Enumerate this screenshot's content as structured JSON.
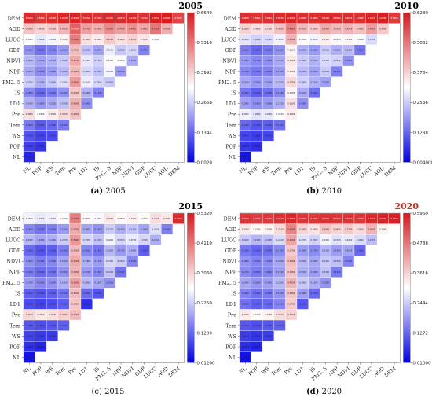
{
  "chart_data": [
    {
      "type": "heatmap",
      "title": "2005",
      "title_color": "#000000",
      "caption_letter": "(a)",
      "caption_year": "2005",
      "caption_letter_bold": true,
      "variables": [
        "NL",
        "POP",
        "WS",
        "Tem",
        "Pre",
        "LD1",
        "IS",
        "PM2.5",
        "NPP",
        "NDVI",
        "GDP",
        "LUCC",
        "AOD",
        "DEM"
      ],
      "x_tick_labels": [
        "NL",
        "POP",
        "WS",
        "Tem",
        "Pre",
        "LD1",
        "IS",
        "PM2. 5",
        "NPP",
        "NDVI",
        "GDP",
        "LUCC",
        "AOD",
        "DEM"
      ],
      "y_tick_labels": [
        "NL",
        "POP",
        "WS",
        "Tem",
        "Pre",
        "LD1",
        "IS",
        "PM2. 5",
        "NPP",
        "NDVI",
        "GDP",
        "LUCC",
        "AOD",
        "DEM"
      ],
      "colorbar_ticks": [
        "0.6640",
        "0.5316",
        "0.3992",
        "0.2668",
        "0.1344",
        "0.0020"
      ],
      "vmin": 0.002,
      "vmax": 0.664,
      "values": [
        [
          0.05
        ],
        [
          0.085,
          0.07
        ],
        [
          0.11,
          0.09,
          0.1
        ],
        [
          0.16,
          0.12,
          0.14,
          0.16
        ],
        [
          0.38,
          0.33,
          0.36,
          0.39,
          0.42
        ],
        [
          0.23,
          0.2,
          0.22,
          0.25,
          0.45,
          0.19
        ],
        [
          0.18,
          0.14,
          0.16,
          0.19,
          0.42,
          0.23,
          0.17
        ],
        [
          0.27,
          0.23,
          0.26,
          0.29,
          0.48,
          0.31,
          0.28,
          0.26
        ],
        [
          0.22,
          0.18,
          0.2,
          0.24,
          0.44,
          0.28,
          0.25,
          0.32,
          0.2
        ],
        [
          0.24,
          0.21,
          0.23,
          0.26,
          0.46,
          0.3,
          0.27,
          0.34,
          0.33,
          0.22
        ],
        [
          0.19,
          0.15,
          0.17,
          0.2,
          0.43,
          0.25,
          0.21,
          0.31,
          0.26,
          0.28,
          0.17
        ],
        [
          0.33,
          0.3,
          0.32,
          0.35,
          0.52,
          0.38,
          0.36,
          0.41,
          0.38,
          0.4,
          0.37,
          0.33
        ],
        [
          0.42,
          0.4,
          0.41,
          0.44,
          0.56,
          0.47,
          0.45,
          0.5,
          0.47,
          0.49,
          0.46,
          0.53,
          0.45
        ],
        [
          0.64,
          0.62,
          0.63,
          0.645,
          0.65,
          0.635,
          0.63,
          0.64,
          0.635,
          0.64,
          0.63,
          0.655,
          0.66,
          0.6
        ]
      ]
    },
    {
      "type": "heatmap",
      "title": "2010",
      "title_color": "#000000",
      "caption_letter": "(b)",
      "caption_year": "2010",
      "caption_letter_bold": true,
      "variables": [
        "NL",
        "POP",
        "WS",
        "Tem",
        "Pre",
        "LD1",
        "IS",
        "PM2.5",
        "NPP",
        "NDVI",
        "GDP",
        "LUCC",
        "AOD",
        "DEM"
      ],
      "x_tick_labels": [
        "NL",
        "POP",
        "WS",
        "Tem",
        "Pre",
        "LD1",
        "IS",
        "PM2. 5",
        "NPP",
        "NDVI",
        "GDP",
        "LUCC",
        "AOD",
        "DEM"
      ],
      "y_tick_labels": [
        "NL",
        "POP",
        "WS",
        "Tem",
        "Pre",
        "LD1",
        "IS",
        "PM2. 5",
        "NPP",
        "NDVI",
        "GDP",
        "LUCC",
        "AOD",
        "DEM"
      ],
      "colorbar_ticks": [
        "0.6280",
        "0.5032",
        "0.3784",
        "0.2536",
        "0.1288",
        "0.004000"
      ],
      "vmin": 0.004,
      "vmax": 0.628,
      "values": [
        [
          0.03
        ],
        [
          0.07,
          0.06
        ],
        [
          0.09,
          0.08,
          0.09
        ],
        [
          0.13,
          0.11,
          0.12,
          0.14
        ],
        [
          0.3,
          0.28,
          0.29,
          0.32,
          0.34
        ],
        [
          0.2,
          0.18,
          0.19,
          0.22,
          0.36,
          0.18
        ],
        [
          0.15,
          0.12,
          0.14,
          0.17,
          0.33,
          0.21,
          0.14
        ],
        [
          0.21,
          0.19,
          0.2,
          0.23,
          0.37,
          0.26,
          0.22,
          0.2
        ],
        [
          0.17,
          0.15,
          0.16,
          0.19,
          0.34,
          0.23,
          0.2,
          0.25,
          0.16
        ],
        [
          0.19,
          0.17,
          0.18,
          0.21,
          0.35,
          0.25,
          0.22,
          0.27,
          0.26,
          0.18
        ],
        [
          0.16,
          0.13,
          0.15,
          0.18,
          0.33,
          0.22,
          0.19,
          0.25,
          0.22,
          0.23,
          0.15
        ],
        [
          0.28,
          0.26,
          0.27,
          0.3,
          0.42,
          0.32,
          0.3,
          0.34,
          0.31,
          0.33,
          0.31,
          0.27
        ],
        [
          0.38,
          0.36,
          0.37,
          0.4,
          0.48,
          0.41,
          0.39,
          0.43,
          0.41,
          0.42,
          0.4,
          0.45,
          0.39
        ],
        [
          0.6,
          0.59,
          0.595,
          0.605,
          0.615,
          0.6,
          0.598,
          0.605,
          0.6,
          0.603,
          0.598,
          0.612,
          0.62,
          0.58
        ]
      ]
    },
    {
      "type": "heatmap",
      "title": "2015",
      "title_color": "#000000",
      "caption_letter": "(c)",
      "caption_year": "2015",
      "caption_letter_bold": false,
      "variables": [
        "NL",
        "POP",
        "WS",
        "Tem",
        "Pre",
        "LD1",
        "IS",
        "PM2.5",
        "NPP",
        "NDVI",
        "GDP",
        "LUCC",
        "AOD",
        "DEM"
      ],
      "x_tick_labels": [
        "NL",
        "POP",
        "WS",
        "Tem",
        "Pre",
        "LD1",
        "IS",
        "PM2. 5",
        "NPP",
        "NDVI",
        "GDP",
        "LUCC",
        "AOD",
        "DEM"
      ],
      "y_tick_labels": [
        "NL",
        "POP",
        "WS",
        "Tem",
        "Pre",
        "LD1",
        "IS",
        "PM2. 5",
        "NPP",
        "NDVI",
        "GDP",
        "LUCC",
        "AOD",
        "DEM"
      ],
      "colorbar_ticks": [
        "0.5320",
        "0.4110",
        "0.3060",
        "0.2250",
        "0.1200",
        "0.01200"
      ],
      "vmin": 0.012,
      "vmax": 0.532,
      "values": [
        [
          0.03
        ],
        [
          0.06,
          0.05
        ],
        [
          0.08,
          0.07,
          0.07
        ],
        [
          0.1,
          0.09,
          0.1,
          0.11
        ],
        [
          0.32,
          0.3,
          0.31,
          0.33,
          0.35
        ],
        [
          0.09,
          0.08,
          0.09,
          0.11,
          0.34,
          0.06
        ],
        [
          0.11,
          0.1,
          0.11,
          0.13,
          0.35,
          0.12,
          0.1
        ],
        [
          0.17,
          0.15,
          0.16,
          0.19,
          0.38,
          0.2,
          0.18,
          0.16
        ],
        [
          0.14,
          0.12,
          0.13,
          0.16,
          0.36,
          0.17,
          0.15,
          0.21,
          0.13
        ],
        [
          0.16,
          0.14,
          0.15,
          0.18,
          0.37,
          0.19,
          0.17,
          0.23,
          0.22,
          0.15
        ],
        [
          0.12,
          0.1,
          0.11,
          0.14,
          0.35,
          0.15,
          0.13,
          0.2,
          0.17,
          0.19,
          0.11
        ],
        [
          0.2,
          0.18,
          0.19,
          0.22,
          0.39,
          0.23,
          0.21,
          0.26,
          0.23,
          0.25,
          0.23,
          0.19
        ],
        [
          0.15,
          0.13,
          0.14,
          0.17,
          0.37,
          0.18,
          0.16,
          0.22,
          0.19,
          0.21,
          0.18,
          0.24,
          0.14
        ],
        [
          0.26,
          0.25,
          0.255,
          0.27,
          0.42,
          0.28,
          0.265,
          0.3,
          0.28,
          0.29,
          0.275,
          0.31,
          0.3,
          0.51
        ]
      ]
    },
    {
      "type": "heatmap",
      "title": "2020",
      "title_color": "#c0392b",
      "caption_letter": "(d)",
      "caption_year": "2020",
      "caption_letter_bold": true,
      "variables": [
        "NL",
        "POP",
        "WS",
        "Tem",
        "Pre",
        "LD1",
        "IS",
        "PM2.5",
        "NPP",
        "NDVI",
        "GDP",
        "LUCC",
        "AOD",
        "DEM"
      ],
      "x_tick_labels": [
        "NL",
        "POP",
        "WS",
        "Tem",
        "Pre",
        "LD1",
        "IS",
        "PM2. 5",
        "NPP",
        "NDVI",
        "GDP",
        "LUCC",
        "AOD",
        "DEM"
      ],
      "y_tick_labels": [
        "NL",
        "POP",
        "WS",
        "Tem",
        "Pre",
        "LD1",
        "IS",
        "PM2. 5",
        "NPP",
        "NDVI",
        "GDP",
        "LUCC",
        "AOD",
        "DEM"
      ],
      "colorbar_ticks": [
        "0.5960",
        "0.4788",
        "0.3616",
        "0.2444",
        "0.1272",
        "0.01000"
      ],
      "vmin": 0.01,
      "vmax": 0.596,
      "values": [
        [
          0.03
        ],
        [
          0.06,
          0.05
        ],
        [
          0.08,
          0.07,
          0.08
        ],
        [
          0.11,
          0.1,
          0.11,
          0.12
        ],
        [
          0.33,
          0.31,
          0.32,
          0.35,
          0.36
        ],
        [
          0.14,
          0.12,
          0.13,
          0.16,
          0.37,
          0.11
        ],
        [
          0.16,
          0.14,
          0.15,
          0.18,
          0.38,
          0.19,
          0.13
        ],
        [
          0.2,
          0.18,
          0.19,
          0.22,
          0.4,
          0.24,
          0.21,
          0.18
        ],
        [
          0.17,
          0.15,
          0.16,
          0.19,
          0.38,
          0.21,
          0.19,
          0.23,
          0.15
        ],
        [
          0.18,
          0.16,
          0.17,
          0.2,
          0.39,
          0.22,
          0.2,
          0.24,
          0.23,
          0.16
        ],
        [
          0.15,
          0.13,
          0.14,
          0.17,
          0.37,
          0.19,
          0.17,
          0.22,
          0.19,
          0.2,
          0.13
        ],
        [
          0.24,
          0.22,
          0.23,
          0.26,
          0.42,
          0.27,
          0.25,
          0.29,
          0.27,
          0.28,
          0.26,
          0.23
        ],
        [
          0.33,
          0.31,
          0.32,
          0.35,
          0.46,
          0.36,
          0.34,
          0.38,
          0.36,
          0.37,
          0.35,
          0.4,
          0.32
        ],
        [
          0.56,
          0.55,
          0.555,
          0.565,
          0.58,
          0.56,
          0.558,
          0.565,
          0.56,
          0.562,
          0.557,
          0.575,
          0.585,
          0.59
        ]
      ]
    }
  ]
}
